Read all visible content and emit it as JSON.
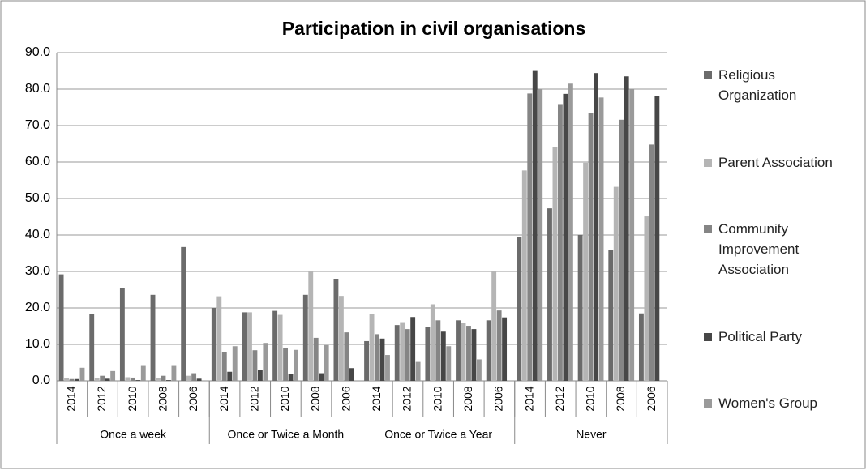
{
  "chart_data": {
    "type": "bar",
    "title": "Participation in civil organisations",
    "groups": [
      "Once a week",
      "Once or Twice a Month",
      "Once or Twice a Year",
      "Never"
    ],
    "categories": [
      "2014",
      "2012",
      "2010",
      "2008",
      "2006",
      "2014",
      "2012",
      "2010",
      "2008",
      "2006",
      "2014",
      "2012",
      "2010",
      "2008",
      "2006",
      "2014",
      "2012",
      "2010",
      "2008",
      "2006"
    ],
    "series": [
      {
        "name": "Religious Organization",
        "color": "#6b6b6b",
        "values": [
          29.2,
          18.3,
          25.4,
          23.6,
          36.7,
          20.0,
          18.8,
          19.2,
          23.6,
          28.0,
          10.9,
          15.3,
          14.8,
          16.6,
          16.6,
          39.5,
          47.3,
          40.0,
          36.0,
          18.5
        ]
      },
      {
        "name": "Parent Association",
        "color": "#b5b5b5",
        "values": [
          0.8,
          0.8,
          1.0,
          0.8,
          1.4,
          23.2,
          18.8,
          18.1,
          30.0,
          23.3,
          18.4,
          16.1,
          21.0,
          15.9,
          30.0,
          57.7,
          64.1,
          59.8,
          53.2,
          45.1
        ]
      },
      {
        "name": "Community Improvement Association",
        "color": "#858585",
        "values": [
          0.5,
          1.4,
          0.9,
          1.4,
          2.1,
          7.8,
          8.4,
          8.9,
          11.8,
          13.3,
          12.8,
          14.2,
          16.6,
          15.1,
          19.3,
          78.8,
          75.9,
          73.5,
          71.6,
          64.8
        ]
      },
      {
        "name": "Political Party",
        "color": "#474747",
        "values": [
          0.5,
          0.6,
          0.2,
          0.2,
          0.6,
          2.5,
          3.1,
          2.0,
          2.1,
          3.5,
          11.6,
          17.5,
          13.5,
          14.2,
          17.4,
          85.2,
          78.7,
          84.4,
          83.5,
          78.2
        ]
      },
      {
        "name": "Women's Group",
        "color": "#9a9a9a",
        "values": [
          3.6,
          2.7,
          4.1,
          4.1,
          null,
          9.5,
          10.4,
          8.5,
          9.8,
          null,
          7.1,
          5.2,
          9.5,
          5.9,
          null,
          80.0,
          81.5,
          77.7,
          80.0,
          null
        ]
      }
    ],
    "ylim": [
      0,
      90
    ],
    "yticks": [
      {
        "value": 0,
        "label": "0.0"
      },
      {
        "value": 10,
        "label": "10.0"
      },
      {
        "value": 20,
        "label": "20.0"
      },
      {
        "value": 30,
        "label": "30.0"
      },
      {
        "value": 40,
        "label": "40.0"
      },
      {
        "value": 50,
        "label": "50.0"
      },
      {
        "value": 60,
        "label": "60.0"
      },
      {
        "value": 70,
        "label": "70.0"
      },
      {
        "value": 80,
        "label": "80.0"
      },
      {
        "value": 90,
        "label": "90.0"
      }
    ],
    "grid": true,
    "legend": "right"
  }
}
